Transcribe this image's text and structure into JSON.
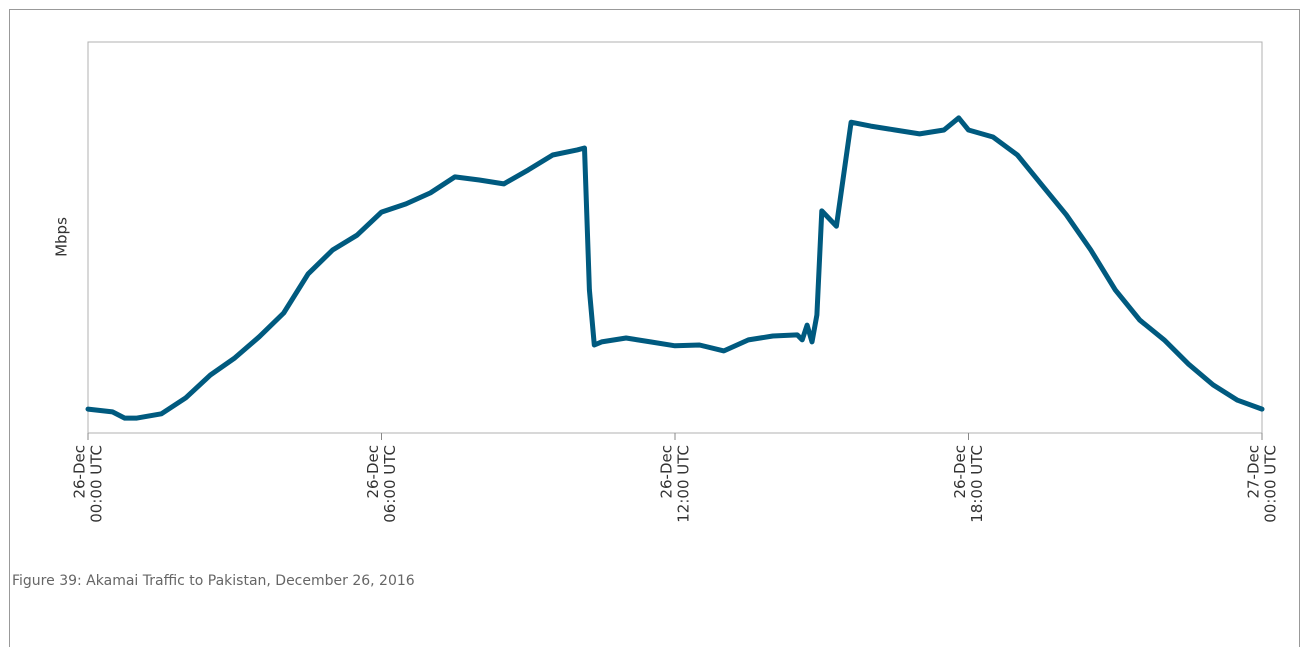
{
  "chart_data": {
    "type": "line",
    "caption": "Figure 39: Akamai Traffic to Pakistan, December 26, 2016",
    "y_label": "Mbps",
    "x": [
      0,
      0.5,
      0.75,
      1,
      1.5,
      2,
      2.5,
      3,
      3.5,
      4,
      4.5,
      5,
      5.5,
      6,
      6.5,
      7,
      7.5,
      8,
      8.5,
      9,
      9.5,
      10,
      10.15,
      10.25,
      10.35,
      10.5,
      11,
      11.5,
      12,
      12.5,
      13,
      13.5,
      14,
      14.5,
      14.6,
      14.7,
      14.8,
      14.9,
      15,
      15.3,
      15.6,
      16,
      16.5,
      17,
      17.5,
      17.8,
      18,
      18.5,
      19,
      19.5,
      20,
      20.5,
      21,
      21.5,
      22,
      22.5,
      23,
      23.5,
      24
    ],
    "series": [
      {
        "color": "#005a7f",
        "values": [
          6.1,
          5.4,
          3.8,
          3.8,
          4.9,
          9.0,
          14.8,
          19.2,
          24.6,
          30.7,
          40.7,
          46.8,
          50.6,
          56.5,
          58.6,
          61.4,
          65.5,
          64.7,
          63.7,
          67.3,
          71.1,
          72.4,
          72.9,
          36.6,
          22.5,
          23.3,
          24.3,
          23.3,
          22.3,
          22.5,
          21.0,
          23.8,
          24.8,
          25.1,
          23.8,
          27.6,
          23.3,
          30.2,
          56.8,
          52.9,
          79.5,
          78.5,
          77.5,
          76.5,
          77.5,
          80.6,
          77.5,
          75.7,
          71.1,
          63.4,
          55.8,
          46.8,
          36.6,
          28.9,
          23.8,
          17.6,
          12.3,
          8.4,
          6.1
        ]
      }
    ],
    "xlim": [
      0,
      24
    ],
    "xticks": [
      {
        "value": 0,
        "label": [
          "26-Dec",
          "00:00 UTC"
        ]
      },
      {
        "value": 6,
        "label": [
          "26-Dec",
          "06:00 UTC"
        ]
      },
      {
        "value": 12,
        "label": [
          "26-Dec",
          "12:00 UTC"
        ]
      },
      {
        "value": 18,
        "label": [
          "26-Dec",
          "18:00 UTC"
        ]
      },
      {
        "value": 24,
        "label": [
          "27-Dec",
          "00:00 UTC"
        ]
      }
    ],
    "ylim": [
      0,
      100
    ]
  }
}
